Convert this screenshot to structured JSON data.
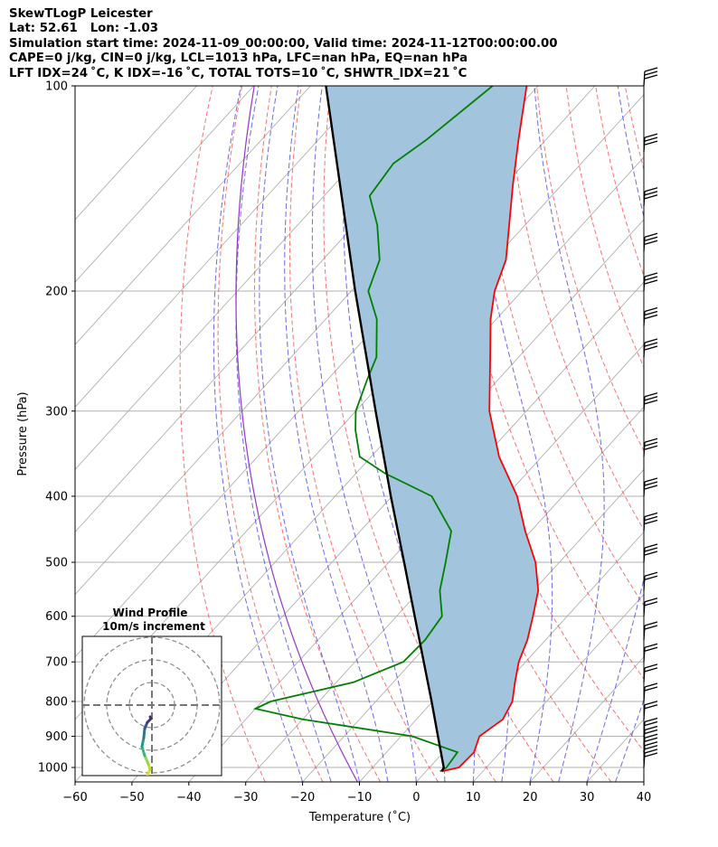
{
  "header": {
    "title": "SkewTLogP Leicester",
    "location": "Lat: 52.61   Lon: -1.03",
    "times": "Simulation start time: 2024-11-09_00:00:00, Valid time: 2024-11-12T00:00:00.00",
    "indices1": "CAPE=0 j/kg, CIN=0 j/kg, LCL=1013 hPa, LFC=nan hPa, EQ=nan hPa",
    "indices2": "LFT IDX=24 ˚C, K IDX=-16 ˚C, TOTAL TOTS=10 ˚C, SHWTR_IDX=21 ˚C"
  },
  "inset": {
    "title": "Wind Profile",
    "subtitle": "10m/s increment"
  },
  "chart_data": {
    "type": "line",
    "subtype": "skew-T log-P diagram",
    "xlabel": "Temperature (˚C)",
    "ylabel": "Pressure (hPa)",
    "xlim": [
      -60,
      40
    ],
    "ylim": [
      1050,
      100
    ],
    "yscale": "log",
    "grid": true,
    "x_ticks": [
      "−60",
      "−50",
      "−40",
      "−30",
      "−20",
      "−10",
      "0",
      "10",
      "20",
      "30",
      "40"
    ],
    "y_ticks": [
      "100",
      "200",
      "300",
      "400",
      "500",
      "600",
      "700",
      "800",
      "900",
      "1000"
    ],
    "series": [
      {
        "color": "#ff0000",
        "kind": "temperature",
        "pressure": [
          1013,
          1000,
          950,
          900,
          850,
          800,
          750,
          700,
          650,
          600,
          550,
          500,
          450,
          400,
          350,
          300,
          250,
          220,
          200,
          180,
          160,
          140,
          120,
          100
        ],
        "values": [
          2.8,
          5.2,
          5.4,
          3.8,
          5.2,
          4.0,
          1.4,
          -1.2,
          -3.2,
          -6.0,
          -9.2,
          -14.2,
          -21.0,
          -28.0,
          -37.5,
          -46.5,
          -55.0,
          -61.0,
          -64.8,
          -67.8,
          -72.8,
          -78.5,
          -84.8,
          -92.0
        ]
      },
      {
        "color": "#008000",
        "kind": "dewpoint",
        "pressure": [
          1013,
          1000,
          950,
          900,
          850,
          820,
          800,
          750,
          700,
          650,
          600,
          550,
          500,
          450,
          400,
          370,
          350,
          320,
          300,
          270,
          250,
          220,
          200,
          180,
          160,
          145,
          130,
          120,
          100
        ],
        "values": [
          2.5,
          3.0,
          2.5,
          -8.0,
          -30.0,
          -40.0,
          -38.5,
          -27.0,
          -21.5,
          -21.2,
          -22.0,
          -26.5,
          -30.0,
          -34.0,
          -43.0,
          -55.0,
          -62.0,
          -67.0,
          -70.0,
          -73.0,
          -75.0,
          -81.0,
          -87.0,
          -90.0,
          -96.0,
          -102.0,
          -103.0,
          -101.0,
          -98.0
        ]
      },
      {
        "color": "#000000",
        "kind": "parcel",
        "pressure": [
          1013,
          1000,
          900,
          800,
          700,
          600,
          500,
          400,
          300,
          200,
          100
        ],
        "values": [
          2.8,
          2.5,
          -3.5,
          -10.2,
          -17.9,
          -26.8,
          -37.3,
          -50.2,
          -66.5,
          -89.3,
          -127.3
        ]
      }
    ],
    "shading": {
      "color": "#a2c4dd",
      "between": [
        "parcel",
        "temperature"
      ]
    },
    "wind_barbs_pressure": [
      1000,
      975,
      950,
      925,
      900,
      850,
      800,
      750,
      700,
      650,
      600,
      550,
      500,
      450,
      400,
      350,
      300,
      250,
      225,
      200,
      175,
      150,
      125,
      100
    ]
  }
}
